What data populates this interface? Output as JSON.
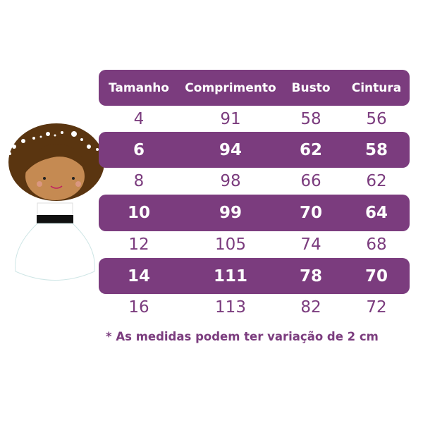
{
  "colors": {
    "accent": "#7b3c7e",
    "text_on_accent": "#ffffff"
  },
  "table": {
    "headers": [
      "Tamanho",
      "Comprimento",
      "Busto",
      "Cintura"
    ],
    "rows": [
      [
        "4",
        "91",
        "58",
        "56"
      ],
      [
        "6",
        "94",
        "62",
        "58"
      ],
      [
        "8",
        "98",
        "66",
        "62"
      ],
      [
        "10",
        "99",
        "70",
        "64"
      ],
      [
        "12",
        "105",
        "74",
        "68"
      ],
      [
        "14",
        "111",
        "78",
        "70"
      ],
      [
        "16",
        "113",
        "82",
        "72"
      ]
    ]
  },
  "footnote": "* As medidas podem ter variação de 2 cm",
  "illustration": "girl-in-white-dress-with-flower-crown"
}
